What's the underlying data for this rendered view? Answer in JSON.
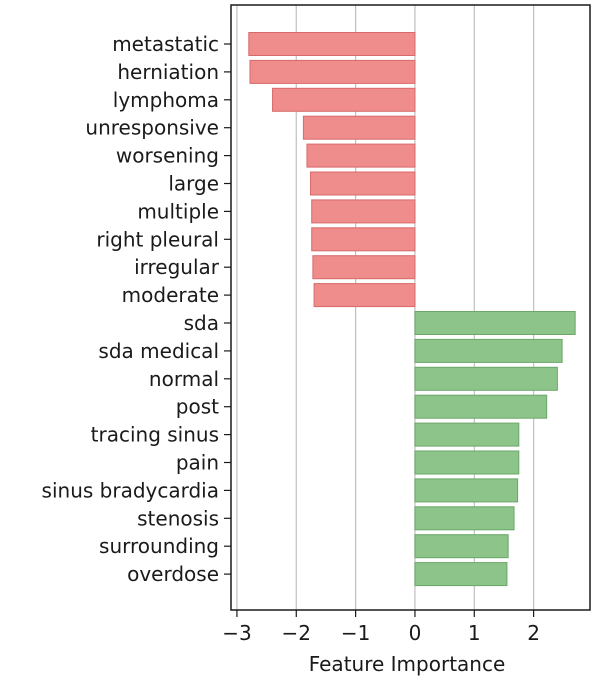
{
  "chart_data": {
    "type": "bar",
    "orientation": "horizontal",
    "title": "",
    "xlabel": "Feature Importance",
    "ylabel": "",
    "xlim": [
      -3.1,
      2.95
    ],
    "x_ticks": [
      -3,
      -2,
      -1,
      0,
      1,
      2
    ],
    "x_tick_labels": [
      "−3",
      "−2",
      "−1",
      "0",
      "1",
      "2"
    ],
    "grid": "vertical",
    "categories": [
      "metastatic",
      "herniation",
      "lymphoma",
      "unresponsive",
      "worsening",
      "large",
      "multiple",
      "right pleural",
      "irregular",
      "moderate",
      "sda",
      "sda medical",
      "normal",
      "post",
      "tracing sinus",
      "pain",
      "sinus bradycardia",
      "stenosis",
      "surrounding",
      "overdose"
    ],
    "values": [
      -2.8,
      -2.78,
      -2.4,
      -1.88,
      -1.82,
      -1.76,
      -1.74,
      -1.74,
      -1.72,
      -1.7,
      2.7,
      2.48,
      2.4,
      2.22,
      1.75,
      1.75,
      1.73,
      1.67,
      1.57,
      1.55
    ],
    "colors": {
      "negative_fill": "#ef8c8c",
      "negative_edge": "#d96a6a",
      "positive_fill": "#8cc48a",
      "positive_edge": "#6aa768",
      "grid": "#c0c0c0",
      "axis": "#1a1a1a"
    }
  }
}
